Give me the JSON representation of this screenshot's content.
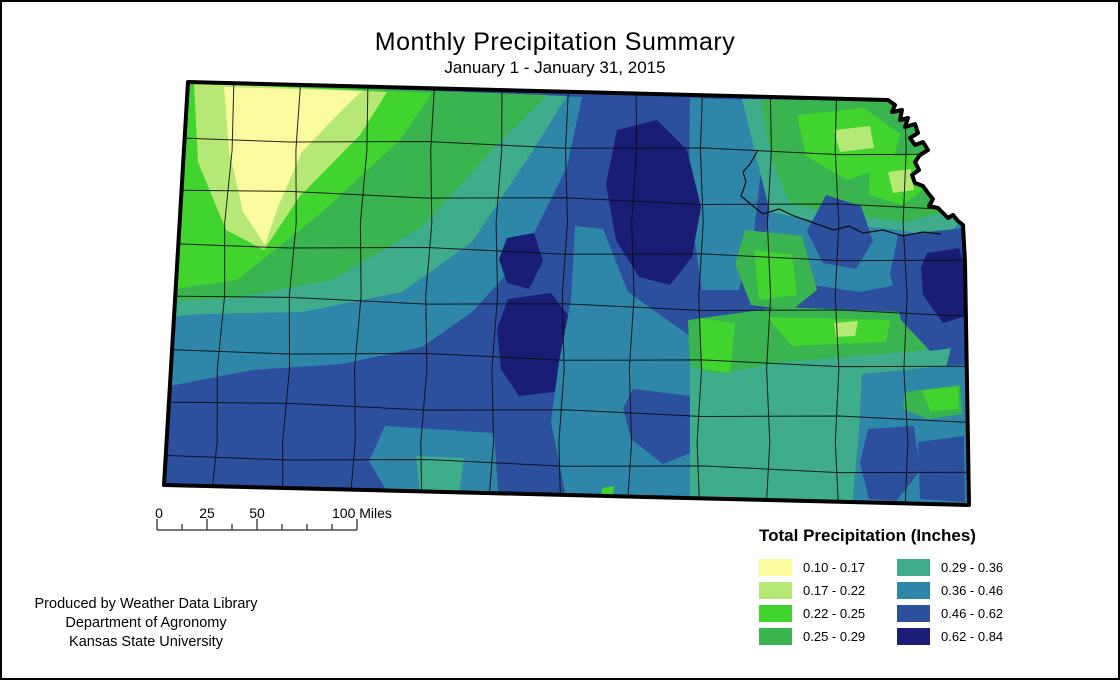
{
  "title": "Monthly Precipitation Summary",
  "subtitle": "January 1 - January 31, 2015",
  "map": {
    "region_name": "Kansas",
    "features": "county boundaries with contoured precipitation classes"
  },
  "scale_bar": {
    "tick_labels": [
      "0",
      "25",
      "50"
    ],
    "end_label": "100 Miles",
    "units": "Miles"
  },
  "legend": {
    "title": "Total Precipitation (Inches)",
    "items": [
      {
        "range": "0.10 - 0.17",
        "color": "#FAFA9E"
      },
      {
        "range": "0.17 - 0.22",
        "color": "#B5E874"
      },
      {
        "range": "0.22 - 0.25",
        "color": "#41D32E"
      },
      {
        "range": "0.25 - 0.29",
        "color": "#39B44E"
      },
      {
        "range": "0.29 - 0.36",
        "color": "#3FAC8B"
      },
      {
        "range": "0.36 - 0.46",
        "color": "#2E86A8"
      },
      {
        "range": "0.46 - 0.62",
        "color": "#2C4F9E"
      },
      {
        "range": "0.62 - 0.84",
        "color": "#1A1D75"
      }
    ]
  },
  "attribution": {
    "line1": "Produced by Weather Data Library",
    "line2": "Department of Agronomy",
    "line3": "Kansas State University"
  }
}
